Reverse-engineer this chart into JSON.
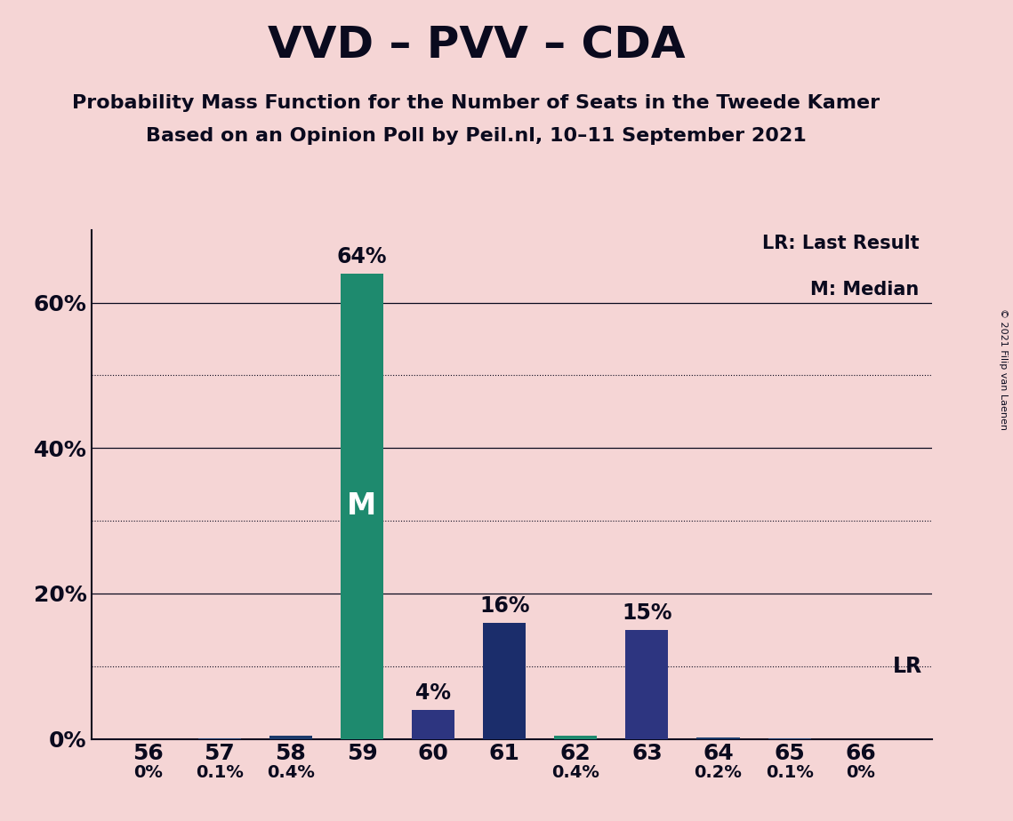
{
  "title": "VVD – PVV – CDA",
  "subtitle1": "Probability Mass Function for the Number of Seats in the Tweede Kamer",
  "subtitle2": "Based on an Opinion Poll by Peil.nl, 10–11 September 2021",
  "copyright": "© 2021 Filip van Laenen",
  "seats": [
    56,
    57,
    58,
    59,
    60,
    61,
    62,
    63,
    64,
    65,
    66
  ],
  "probabilities": [
    0.0,
    0.1,
    0.4,
    64.0,
    4.0,
    16.0,
    0.4,
    15.0,
    0.2,
    0.1,
    0.0
  ],
  "labels": [
    "0%",
    "0.1%",
    "0.4%",
    "64%",
    "4%",
    "16%",
    "0.4%",
    "15%",
    "0.2%",
    "0.1%",
    "0%"
  ],
  "bar_colors": [
    "#1B3A6B",
    "#1B3A6B",
    "#1B3A6B",
    "#1E8A6E",
    "#2D3580",
    "#1B2D6B",
    "#1E8A6E",
    "#2D3580",
    "#1B3A6B",
    "#1B3A6B",
    "#1B3A6B"
  ],
  "median_seat": 59,
  "lr_seat": 66,
  "background_color": "#F5D5D5",
  "ytick_labels": [
    "0%",
    "20%",
    "40%",
    "60%"
  ],
  "ytick_values": [
    0,
    20,
    40,
    60
  ],
  "ylim": [
    0,
    70
  ],
  "legend_lr": "LR: Last Result",
  "legend_m": "M: Median",
  "lr_annotation": "LR",
  "m_annotation": "M",
  "title_fontsize": 36,
  "subtitle_fontsize": 16,
  "label_fontsize_large": 17,
  "label_fontsize_small": 14,
  "tick_fontsize": 18,
  "bar_width": 0.6
}
